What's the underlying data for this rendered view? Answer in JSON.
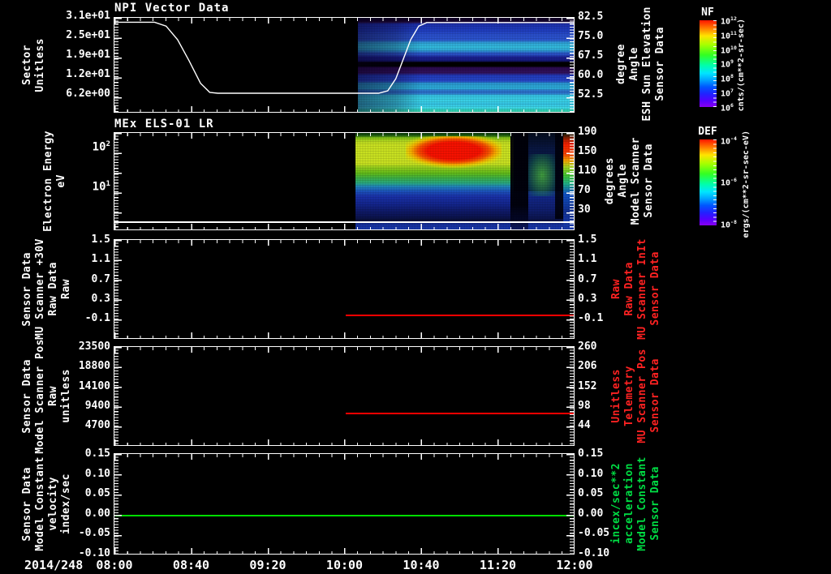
{
  "x_axis": {
    "date": "2014/248",
    "ticks": [
      "08:00",
      "08:40",
      "09:20",
      "10:00",
      "10:40",
      "11:20",
      "12:00"
    ]
  },
  "panels": [
    {
      "title": "NPI Vector Data",
      "left_axis": {
        "label_lines": [
          "Sector",
          "Unitless"
        ],
        "ticks": [
          "3.1e+01",
          "2.5e+01",
          "1.9e+01",
          "1.2e+01",
          "6.2e+00"
        ]
      },
      "right_axis": {
        "label_lines": [
          "Sensor Data",
          "ESH Sun Elevation",
          "Angle",
          "degree"
        ],
        "ticks": [
          "82.5",
          "75.0",
          "67.5",
          "60.0",
          "52.5"
        ]
      }
    },
    {
      "title": "MEx ELS-01 LR",
      "left_axis": {
        "label_lines": [
          "Electron Energy",
          "eV"
        ],
        "ticks": [
          "10^2",
          "10^1"
        ]
      },
      "right_axis": {
        "label_lines": [
          "Sensor Data",
          "Model Scanner",
          "Angle",
          "degrees"
        ],
        "ticks": [
          "190",
          "150",
          "110",
          "70",
          "30"
        ]
      }
    },
    {
      "left_axis": {
        "label_lines": [
          "Sensor Data",
          "MU Scanner +30V",
          "Raw Data",
          "Raw"
        ],
        "ticks": [
          "1.5",
          "1.1",
          "0.7",
          "0.3",
          "-0.1"
        ]
      },
      "right_axis": {
        "label_lines": [
          "Sensor Data",
          "MU Scanner InIt",
          "Raw Data",
          "Raw"
        ],
        "ticks": [
          "1.5",
          "1.1",
          "0.7",
          "0.3",
          "-0.1"
        ],
        "color": "#ff2222"
      }
    },
    {
      "left_axis": {
        "label_lines": [
          "Sensor Data",
          "Model Scanner Pos",
          "Raw",
          "unitless"
        ],
        "ticks": [
          "23500",
          "18800",
          "14100",
          "9400",
          "4700"
        ]
      },
      "right_axis": {
        "label_lines": [
          "Sensor Data",
          "MU Scanner Pos",
          "Telemetry",
          "Unitless"
        ],
        "ticks": [
          "260",
          "206",
          "152",
          "98",
          "44"
        ],
        "color": "#ff2222"
      }
    },
    {
      "left_axis": {
        "label_lines": [
          "Sensor Data",
          "Model Constant",
          "velocity",
          "index/sec"
        ],
        "ticks": [
          "0.15",
          "0.10",
          "0.05",
          "0.00",
          "-0.05",
          "-0.10"
        ]
      },
      "right_axis": {
        "label_lines": [
          "Sensor Data",
          "Model Constant",
          "acceleration",
          "incex/sec**2"
        ],
        "ticks": [
          "0.15",
          "0.10",
          "0.05",
          "0.00",
          "-0.05",
          "-0.10"
        ],
        "color": "#00dd44"
      }
    }
  ],
  "colorbars": [
    {
      "name": "NF",
      "ticks": [
        "10^12",
        "10^11",
        "10^10",
        "10^9",
        "10^8",
        "10^7",
        "10^6"
      ],
      "unit": "cnts/(cm**2-sr-sec)"
    },
    {
      "name": "DEF",
      "ticks": [
        "10^-4",
        "10^-6",
        "10^-8"
      ],
      "unit": "ergs/(cm**2-sr-sec-eV)"
    }
  ],
  "colors": {
    "axis": "#ffffff",
    "red_series": "#ff0000",
    "green_series": "#00dd00"
  },
  "chart_data": [
    {
      "type": "line",
      "panel": "NPI Vector Data",
      "name": "Sector (Unitless)",
      "x_unit": "hours UT, day 2014/248",
      "xlim": [
        8.0,
        12.0
      ],
      "ylim": [
        0,
        31.25
      ],
      "yticks": [
        31,
        25,
        19,
        12,
        6.2
      ],
      "points": [
        [
          8.0,
          29.8
        ],
        [
          8.35,
          29.8
        ],
        [
          8.45,
          28.5
        ],
        [
          8.55,
          24
        ],
        [
          8.65,
          17
        ],
        [
          8.75,
          9.5
        ],
        [
          8.83,
          6.5
        ],
        [
          8.9,
          6.2
        ],
        [
          10.3,
          6.2
        ],
        [
          10.38,
          7
        ],
        [
          10.45,
          11
        ],
        [
          10.52,
          18
        ],
        [
          10.58,
          24
        ],
        [
          10.65,
          28.5
        ],
        [
          10.72,
          29.7
        ],
        [
          12.0,
          29.7
        ]
      ],
      "color": "#ffffff"
    },
    {
      "type": "heatmap",
      "panel": "NPI Vector Data",
      "colorbar": "NF",
      "x_range": [
        10.05,
        12.0
      ],
      "y_axis": "Sensor Data ESH Sun Elevation Angle (degree)",
      "y_ticks": [
        82.5,
        75.0,
        67.5,
        60.0,
        52.5
      ],
      "value_unit": "cnts/(cm**2-sr-sec)",
      "scale": "log",
      "clim": [
        "1e6",
        "1e12"
      ],
      "description": "horizontal blue/cyan flux bands; dark purple near top; black gap band near 62-64 deg; brightest cyan bands near 50-57 deg; left quarter dimmer"
    },
    {
      "type": "heatmap",
      "panel": "MEx ELS-01 LR",
      "colorbar": "DEF",
      "x_range": [
        10.02,
        12.0
      ],
      "y_axis": "Electron Energy (eV)",
      "y_scale": "log",
      "y_ticks": [
        "10^2",
        "10^1"
      ],
      "value_unit": "ergs/(cm**2-sr-sec-eV)",
      "clim": [
        "1e-8",
        "1e-4"
      ],
      "description": "intense red core 50-200 eV from ~10:28-11:12 surrounded by yellow/green; green-cyan 10-40 eV; blue speckle below 10 eV; dark vertical gaps ~11:22-11:30 and ~11:43; hot red/orange strip at right edge; white line near 2.5 eV"
    },
    {
      "type": "line",
      "panel": "Sensor Data MU Scanner +30V Raw Data Raw",
      "name": "MU Scanner +30V / InIt Raw",
      "color": "#ff0000",
      "xlim": [
        8.0,
        12.0
      ],
      "ylim": [
        -0.5,
        1.5
      ],
      "yticks": [
        1.5,
        1.1,
        0.7,
        0.3,
        -0.1
      ],
      "points": [
        [
          10.0,
          0.0
        ],
        [
          12.0,
          0.0
        ]
      ]
    },
    {
      "type": "line",
      "panel": "Sensor Data Model Scanner Pos Raw unitless",
      "name": "Model Scanner Pos Raw / MU Scanner Pos Telemetry",
      "color": "#ff0000",
      "xlim": [
        8.0,
        12.0
      ],
      "ylim": [
        0,
        23500
      ],
      "yticks_left": [
        23500,
        18800,
        14100,
        9400,
        4700
      ],
      "yticks_right": [
        260,
        206,
        152,
        98,
        44
      ],
      "points": [
        [
          10.0,
          8200
        ],
        [
          12.0,
          8200
        ]
      ],
      "right_axis_value": 88
    },
    {
      "type": "line",
      "panel": "Sensor Data Model Constant velocity index/sec",
      "name": "Model Constant velocity / acceleration",
      "color": "#00dd00",
      "xlim": [
        8.0,
        12.0
      ],
      "ylim": [
        -0.1,
        0.15
      ],
      "yticks": [
        0.15,
        0.1,
        0.05,
        0.0,
        -0.05,
        -0.1
      ],
      "points": [
        [
          8.0,
          0.0
        ],
        [
          12.0,
          0.0
        ]
      ]
    }
  ]
}
